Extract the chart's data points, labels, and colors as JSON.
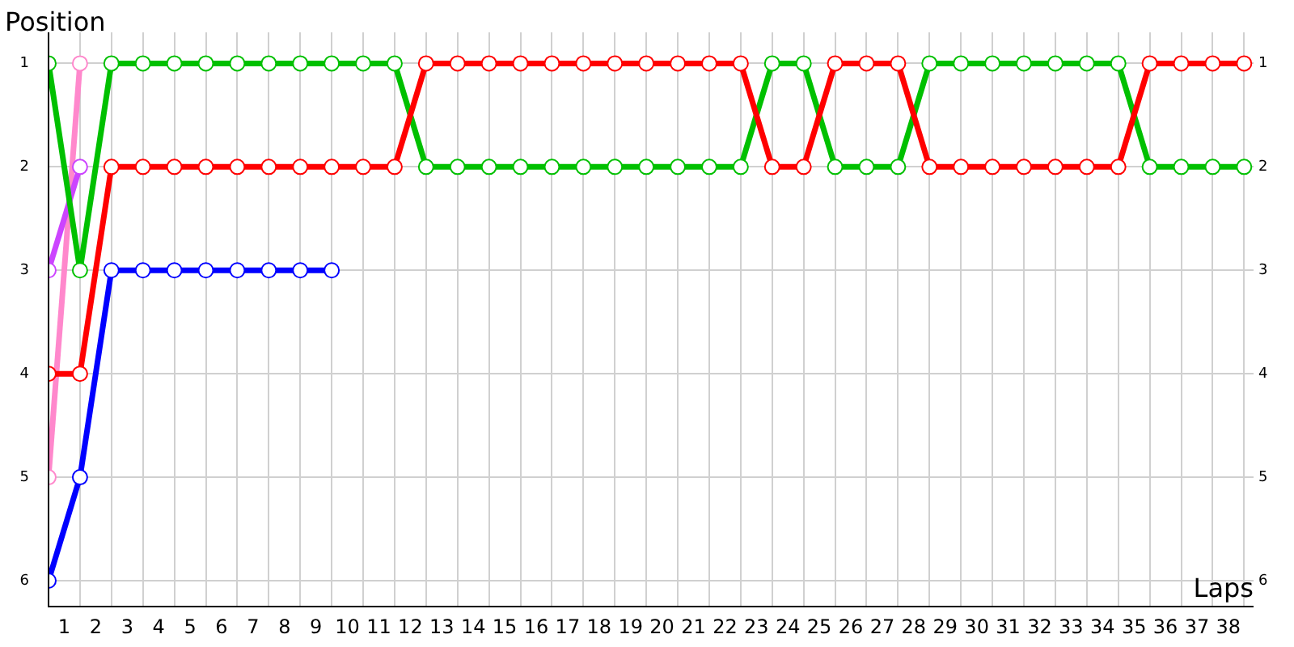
{
  "chart_data": {
    "type": "line",
    "xlabel": "Laps",
    "ylabel": "Position",
    "marker": "circle",
    "grid": true,
    "legend": false,
    "x": [
      0,
      1,
      2,
      3,
      4,
      5,
      6,
      7,
      8,
      9,
      10,
      11,
      12,
      13,
      14,
      15,
      16,
      17,
      18,
      19,
      20,
      21,
      22,
      23,
      24,
      25,
      26,
      27,
      28,
      29,
      30,
      31,
      32,
      33,
      34,
      35,
      36,
      37,
      38
    ],
    "xlim": [
      0,
      38.3
    ],
    "xticks": [
      {
        "value": 0,
        "label": null
      },
      {
        "value": 0.5,
        "label": "1"
      },
      {
        "value": 1,
        "label": null
      },
      {
        "value": 1.5,
        "label": "2"
      },
      {
        "value": 2,
        "label": null
      },
      {
        "value": 2.5,
        "label": "3"
      },
      {
        "value": 3,
        "label": null
      },
      {
        "value": 3.5,
        "label": "4"
      },
      {
        "value": 4,
        "label": null
      },
      {
        "value": 4.5,
        "label": "5"
      },
      {
        "value": 5,
        "label": null
      },
      {
        "value": 5.5,
        "label": "6"
      },
      {
        "value": 6,
        "label": null
      },
      {
        "value": 6.5,
        "label": "7"
      },
      {
        "value": 7,
        "label": null
      },
      {
        "value": 7.5,
        "label": "8"
      },
      {
        "value": 8,
        "label": null
      },
      {
        "value": 8.5,
        "label": "9"
      },
      {
        "value": 9,
        "label": null
      },
      {
        "value": 9.5,
        "label": "10"
      },
      {
        "value": 10,
        "label": null
      },
      {
        "value": 10.5,
        "label": "11"
      },
      {
        "value": 11,
        "label": null
      },
      {
        "value": 11.5,
        "label": "12"
      },
      {
        "value": 12,
        "label": null
      },
      {
        "value": 12.5,
        "label": "13"
      },
      {
        "value": 13,
        "label": null
      },
      {
        "value": 13.5,
        "label": "14"
      },
      {
        "value": 14,
        "label": null
      },
      {
        "value": 14.5,
        "label": "15"
      },
      {
        "value": 15,
        "label": null
      },
      {
        "value": 15.5,
        "label": "16"
      },
      {
        "value": 16,
        "label": null
      },
      {
        "value": 16.5,
        "label": "17"
      },
      {
        "value": 17,
        "label": null
      },
      {
        "value": 17.5,
        "label": "18"
      },
      {
        "value": 18,
        "label": null
      },
      {
        "value": 18.5,
        "label": "19"
      },
      {
        "value": 19,
        "label": null
      },
      {
        "value": 19.5,
        "label": "20"
      },
      {
        "value": 20,
        "label": null
      },
      {
        "value": 20.5,
        "label": "21"
      },
      {
        "value": 21,
        "label": null
      },
      {
        "value": 21.5,
        "label": "22"
      },
      {
        "value": 22,
        "label": null
      },
      {
        "value": 22.5,
        "label": "23"
      },
      {
        "value": 23,
        "label": null
      },
      {
        "value": 23.5,
        "label": "24"
      },
      {
        "value": 24,
        "label": null
      },
      {
        "value": 24.5,
        "label": "25"
      },
      {
        "value": 25,
        "label": null
      },
      {
        "value": 25.5,
        "label": "26"
      },
      {
        "value": 26,
        "label": null
      },
      {
        "value": 26.5,
        "label": "27"
      },
      {
        "value": 27,
        "label": null
      },
      {
        "value": 27.5,
        "label": "28"
      },
      {
        "value": 28,
        "label": null
      },
      {
        "value": 28.5,
        "label": "29"
      },
      {
        "value": 29,
        "label": null
      },
      {
        "value": 29.5,
        "label": "30"
      },
      {
        "value": 30,
        "label": null
      },
      {
        "value": 30.5,
        "label": "31"
      },
      {
        "value": 31,
        "label": null
      },
      {
        "value": 31.5,
        "label": "32"
      },
      {
        "value": 32,
        "label": null
      },
      {
        "value": 32.5,
        "label": "33"
      },
      {
        "value": 33,
        "label": null
      },
      {
        "value": 33.5,
        "label": "34"
      },
      {
        "value": 34,
        "label": null
      },
      {
        "value": 34.5,
        "label": "35"
      },
      {
        "value": 35,
        "label": null
      },
      {
        "value": 35.5,
        "label": "36"
      },
      {
        "value": 36,
        "label": null
      },
      {
        "value": 36.5,
        "label": "37"
      },
      {
        "value": 37,
        "label": null
      },
      {
        "value": 37.5,
        "label": "38"
      },
      {
        "value": 38,
        "label": null
      }
    ],
    "ylim": [
      6.25,
      0.7
    ],
    "yticks": [
      1,
      2,
      3,
      4,
      5,
      6
    ],
    "y2lim": [
      6.25,
      0.7
    ],
    "y2ticks": [
      1,
      2,
      3,
      4,
      5,
      6
    ],
    "series": [
      {
        "color": "#ff0000",
        "values": [
          4,
          4,
          2,
          2,
          2,
          2,
          2,
          2,
          2,
          2,
          2,
          2,
          1,
          1,
          1,
          1,
          1,
          1,
          1,
          1,
          1,
          1,
          1,
          2,
          2,
          1,
          1,
          1,
          2,
          2,
          2,
          2,
          2,
          2,
          2,
          1,
          1,
          1,
          1
        ]
      },
      {
        "color": "#00c000",
        "values": [
          1,
          3,
          1,
          1,
          1,
          1,
          1,
          1,
          1,
          1,
          1,
          1,
          2,
          2,
          2,
          2,
          2,
          2,
          2,
          2,
          2,
          2,
          2,
          1,
          1,
          2,
          2,
          2,
          1,
          1,
          1,
          1,
          1,
          1,
          1,
          2,
          2,
          2,
          2
        ]
      },
      {
        "color": "#0000ff",
        "values": [
          6,
          5,
          3,
          3,
          3,
          3,
          3,
          3,
          3,
          3,
          null,
          null,
          null,
          null,
          null,
          null,
          null,
          null,
          null,
          null,
          null,
          null,
          null,
          null,
          null,
          null,
          null,
          null,
          null,
          null,
          null,
          null,
          null,
          null,
          null,
          null,
          null,
          null,
          null
        ]
      },
      {
        "color": "#cc44ff",
        "values": [
          3,
          2,
          null,
          null,
          null,
          null,
          null,
          null,
          null,
          null,
          null,
          null,
          null,
          null,
          null,
          null,
          null,
          null,
          null,
          null,
          null,
          null,
          null,
          null,
          null,
          null,
          null,
          null,
          null,
          null,
          null,
          null,
          null,
          null,
          null,
          null,
          null,
          null,
          null
        ]
      },
      {
        "color": "#ff88cc",
        "values": [
          5,
          1,
          null,
          null,
          null,
          null,
          null,
          null,
          null,
          null,
          null,
          null,
          null,
          null,
          null,
          null,
          null,
          null,
          null,
          null,
          null,
          null,
          null,
          null,
          null,
          null,
          null,
          null,
          null,
          null,
          null,
          null,
          null,
          null,
          null,
          null,
          null,
          null,
          null
        ]
      }
    ]
  }
}
